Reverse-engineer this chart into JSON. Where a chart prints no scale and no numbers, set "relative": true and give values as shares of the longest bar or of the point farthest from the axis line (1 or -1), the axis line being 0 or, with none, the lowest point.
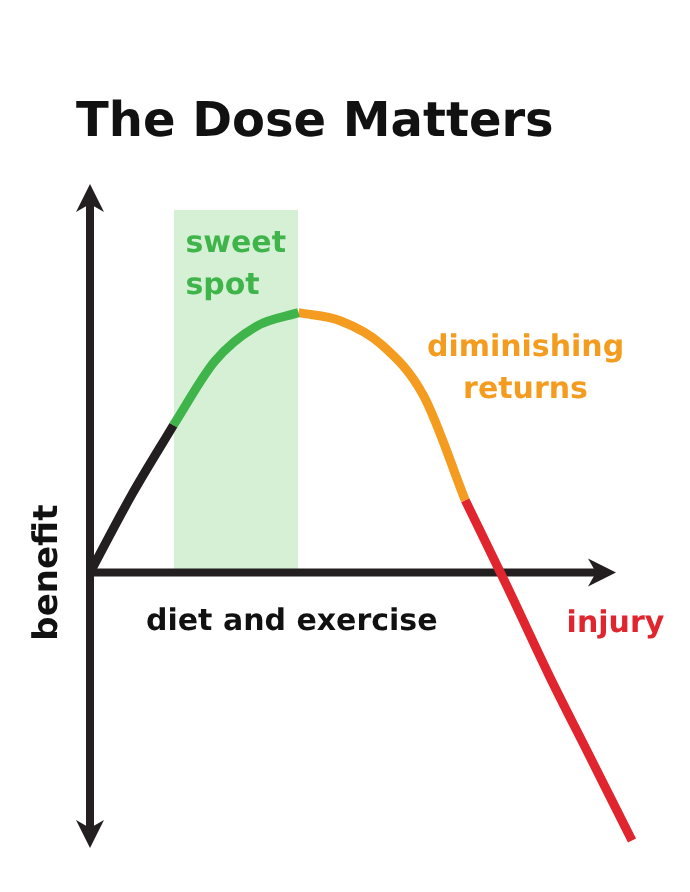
{
  "chart_data": {
    "type": "line",
    "title": "The Dose Matters",
    "xlabel": "diet and exercise",
    "ylabel": "benefit",
    "relative": true,
    "categories": [
      null,
      null,
      null,
      null,
      null,
      null,
      null,
      null,
      null,
      null,
      null,
      null,
      null,
      null
    ],
    "series": [
      {
        "color": "#231f20",
        "values": [
          0,
          0.29,
          0.55,
          null,
          null,
          null,
          null,
          null,
          null,
          null,
          null,
          null,
          null,
          null
        ]
      },
      {
        "name": "sweet spot",
        "color": "#3fb44a",
        "values": [
          null,
          null,
          0.55,
          0.79,
          0.92,
          0.97,
          null,
          null,
          null,
          null,
          null,
          null,
          null,
          null
        ]
      },
      {
        "name": "diminishing returns",
        "color": "#f39c1f",
        "values": [
          null,
          null,
          null,
          null,
          null,
          0.97,
          0.94,
          0.85,
          0.66,
          0.27,
          null,
          null,
          null,
          null
        ]
      },
      {
        "name": "injury",
        "color": "#e0252f",
        "values": [
          null,
          null,
          null,
          null,
          null,
          null,
          null,
          null,
          null,
          0.27,
          -0.05,
          -0.38,
          -0.69,
          -1
        ]
      }
    ],
    "grid": false,
    "legend": false,
    "marker": "none",
    "line_style": "solid"
  }
}
